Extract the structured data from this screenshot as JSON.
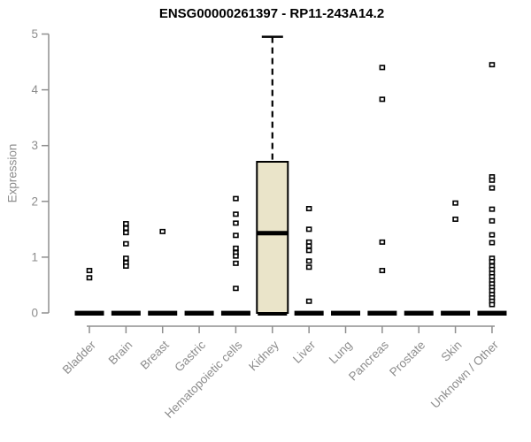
{
  "title": "ENSG00000261397 - RP11-243A14.2",
  "colors": {
    "box_fill": "#EAE4C9",
    "box_stroke": "#000000",
    "median": "#000000",
    "whisker": "#000000",
    "zero_bar": "#000000",
    "marker_stroke": "#000000",
    "marker_fill": "#FFFFFF",
    "axis_line": "#8f8f8f",
    "tick_label": "#8d8d8d",
    "title_color": "#000000",
    "background": "#FFFFFF"
  },
  "chart_data": {
    "type": "boxplot",
    "title": "ENSG00000261397 - RP11-243A14.2",
    "xlabel": "",
    "ylabel": "Expression",
    "ylim": [
      0,
      5
    ],
    "yticks": [
      0,
      1,
      2,
      3,
      4,
      5
    ],
    "grid": false,
    "legend": "none",
    "categories": [
      "Bladder",
      "Brain",
      "Breast",
      "Gastric",
      "Hematopoietic cells",
      "Kidney",
      "Liver",
      "Lung",
      "Pancreas",
      "Prostate",
      "Skin",
      "Unknown / Other"
    ],
    "series": [
      {
        "category": "Bladder",
        "zero_bar": true,
        "points": [
          0.76,
          0.63
        ]
      },
      {
        "category": "Brain",
        "zero_bar": true,
        "points": [
          1.6,
          1.52,
          1.44,
          1.24,
          0.98,
          0.9,
          0.84
        ]
      },
      {
        "category": "Breast",
        "zero_bar": true,
        "points": [
          1.46
        ]
      },
      {
        "category": "Gastric",
        "zero_bar": true,
        "points": []
      },
      {
        "category": "Hematopoietic cells",
        "zero_bar": true,
        "points": [
          2.05,
          1.77,
          1.61,
          1.39,
          1.16,
          1.08,
          1.02,
          0.89,
          0.44
        ]
      },
      {
        "category": "Kidney",
        "zero_bar": true,
        "points": [],
        "box": {
          "q1": 0,
          "median": 1.43,
          "q3": 2.71,
          "whisker_low": 0,
          "whisker_high": 4.95
        }
      },
      {
        "category": "Liver",
        "zero_bar": true,
        "points": [
          1.87,
          1.5,
          1.27,
          1.2,
          1.12,
          0.93,
          0.82,
          0.21
        ]
      },
      {
        "category": "Lung",
        "zero_bar": true,
        "points": []
      },
      {
        "category": "Pancreas",
        "zero_bar": true,
        "points": [
          4.4,
          3.83,
          1.27,
          0.76
        ]
      },
      {
        "category": "Prostate",
        "zero_bar": true,
        "points": []
      },
      {
        "category": "Skin",
        "zero_bar": true,
        "points": [
          1.97,
          1.68
        ]
      },
      {
        "category": "Unknown / Other",
        "zero_bar": true,
        "points": [
          4.45,
          2.44,
          2.38,
          2.24,
          1.86,
          1.65,
          1.4,
          1.26,
          0.98,
          0.92,
          0.84,
          0.78,
          0.71,
          0.65,
          0.58,
          0.52,
          0.46,
          0.4,
          0.33,
          0.27,
          0.21,
          0.15
        ]
      }
    ]
  }
}
